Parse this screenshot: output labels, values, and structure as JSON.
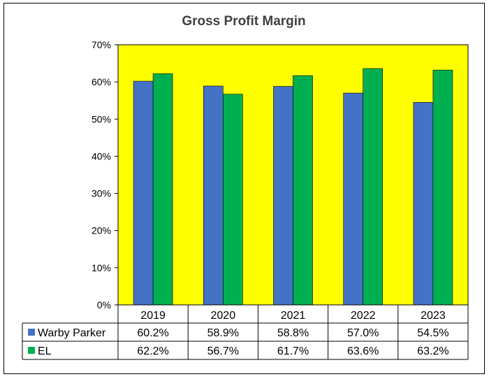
{
  "chart_data": {
    "type": "bar",
    "title": "Gross Profit Margin",
    "categories": [
      "2019",
      "2020",
      "2021",
      "2022",
      "2023"
    ],
    "series": [
      {
        "name": "Warby Parker",
        "color": "#4472C4",
        "values": [
          60.2,
          58.9,
          58.8,
          57.0,
          54.5
        ],
        "labels": [
          "60.2%",
          "58.9%",
          "58.8%",
          "57.0%",
          "54.5%"
        ]
      },
      {
        "name": "EL",
        "color": "#00B050",
        "values": [
          62.2,
          56.7,
          61.7,
          63.6,
          63.2
        ],
        "labels": [
          "62.2%",
          "56.7%",
          "61.7%",
          "63.6%",
          "63.2%"
        ]
      }
    ],
    "yticks": [
      "0%",
      "10%",
      "20%",
      "30%",
      "40%",
      "50%",
      "60%",
      "70%"
    ],
    "ylim": [
      0,
      70
    ],
    "plot_background": "#FFFF00",
    "grid": false,
    "legend": "data-table"
  }
}
